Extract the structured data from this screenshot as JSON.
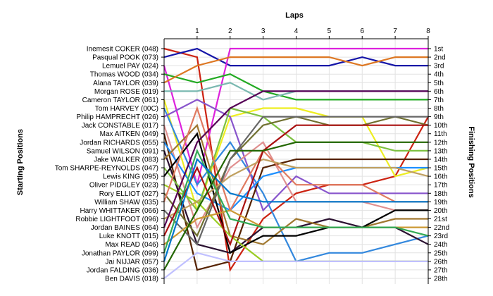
{
  "chart_data": {
    "type": "line",
    "title": "Laps",
    "ylabel_left": "Starting Positions",
    "ylabel_right": "Finishing Positions",
    "x": [
      0,
      1,
      2,
      3,
      4,
      5,
      6,
      7,
      8
    ],
    "x_tick_labels": [
      "1",
      "2",
      "3",
      "4",
      "5",
      "6",
      "7",
      "8"
    ],
    "xlim": [
      0,
      8
    ],
    "ylim": [
      1,
      28
    ],
    "y_inverted": true,
    "grid": true,
    "starting_labels": [
      "Inemesit COKER (048)",
      "Pasqual POOK (073)",
      "Lemuel PAY (024)",
      "Thomas WOOD (034)",
      "Alana TAYLOR (039)",
      "Morgan ROSE (019)",
      "Cameron TAYLOR (061)",
      "Tom HARVEY (00C)",
      "Philip HAMPRECHT (026)",
      "Jack CONSTABLE (017)",
      "Max AITKEN (049)",
      "Jordan RICHARDS (055)",
      "Samuel WILSON (091)",
      "Jake WALKER (083)",
      "Tom SHARPE-REYNOLDS (047)",
      "Lewis KING (095)",
      "Oliver PIDGLEY (023)",
      "Rory ELLIOT (027)",
      "William SHAW (035)",
      "Harry WHITTAKER (066)",
      "Robbie LIGHTFOOT (096)",
      "Jordan BAINES (064)",
      "Luke KNOTT (015)",
      "Max READ (046)",
      "Jonathan PAYLOR (099)",
      "Jai NIJJAR (057)",
      "Jordan FALDING (036)",
      "Ben DAVIS (018)"
    ],
    "finishing_labels": [
      "1st",
      "2nd",
      "3rd",
      "4th",
      "5th",
      "6th",
      "7th",
      "8th",
      "9th",
      "10th",
      "11th",
      "12th",
      "13th",
      "14th",
      "15th",
      "16th",
      "17th",
      "18th",
      "19th",
      "20th",
      "21st",
      "22nd",
      "23rd",
      "24th",
      "25th",
      "26th",
      "27th",
      "28th"
    ],
    "series": [
      {
        "color": "#cc2211",
        "values": [
          1,
          2,
          27,
          21,
          18,
          17,
          17,
          16,
          9
        ]
      },
      {
        "color": "#1515a8",
        "values": [
          2,
          1,
          3,
          3,
          3,
          3,
          2,
          3,
          3
        ]
      },
      {
        "color": "#dd22dd",
        "values": [
          3,
          17,
          1,
          1,
          1,
          1,
          1,
          1,
          1
        ]
      },
      {
        "color": "#22aa22",
        "values": [
          4,
          5,
          4,
          6,
          7,
          7,
          7,
          7,
          7
        ]
      },
      {
        "color": "#dd7722",
        "values": [
          5,
          3,
          2,
          2,
          2,
          2,
          3,
          2,
          2
        ]
      },
      {
        "color": "#7ab8b0",
        "values": [
          6,
          6,
          5,
          7,
          6,
          6,
          6,
          6,
          6
        ]
      },
      {
        "color": "#eeee22",
        "values": [
          7,
          20,
          9,
          8,
          8,
          9,
          9,
          16,
          15
        ]
      },
      {
        "color": "#3388dd",
        "values": [
          8,
          17,
          12,
          18,
          26,
          25,
          25,
          24,
          23
        ]
      },
      {
        "color": "#8855cc",
        "values": [
          9,
          7,
          9,
          20,
          16,
          18,
          18,
          18,
          18
        ]
      },
      {
        "color": "#e09090",
        "values": [
          10,
          22,
          15,
          12,
          19,
          19,
          19,
          20,
          20
        ]
      },
      {
        "color": "#552200",
        "values": [
          11,
          27,
          26,
          15,
          14,
          14,
          14,
          14,
          14
        ]
      },
      {
        "color": "#1e90ff",
        "values": [
          12,
          18,
          20,
          16,
          15,
          15,
          15,
          15,
          15
        ]
      },
      {
        "color": "#2a1030",
        "values": [
          13,
          24,
          25,
          22,
          22,
          21,
          22,
          22,
          24
        ]
      },
      {
        "color": "#a07830",
        "values": [
          14,
          10,
          23,
          24,
          21,
          22,
          22,
          21,
          21
        ]
      },
      {
        "color": "#7cc040",
        "values": [
          15,
          20,
          8,
          9,
          12,
          12,
          12,
          13,
          13
        ]
      },
      {
        "color": "#000000",
        "values": [
          16,
          11,
          25,
          23,
          23,
          22,
          22,
          20,
          20
        ]
      },
      {
        "color": "#99cc22",
        "values": [
          17,
          19,
          23,
          26,
          26,
          26,
          26,
          26,
          26
        ]
      },
      {
        "color": "#707030",
        "values": [
          18,
          23,
          14,
          10,
          9,
          10,
          10,
          9,
          10
        ]
      },
      {
        "color": "#e07a60",
        "values": [
          19,
          8,
          20,
          13,
          17,
          17,
          17,
          19,
          19
        ]
      },
      {
        "color": "#666666",
        "values": [
          20,
          24,
          14,
          9,
          9,
          9,
          9,
          9,
          9
        ]
      },
      {
        "color": "#c0a060",
        "values": [
          21,
          19,
          16,
          14,
          15,
          15,
          15,
          15,
          16
        ]
      },
      {
        "color": "#550055",
        "values": [
          22,
          12,
          8,
          6,
          6,
          6,
          6,
          6,
          6
        ]
      },
      {
        "color": "#aa1111",
        "values": [
          23,
          15,
          24,
          13,
          10,
          10,
          10,
          10,
          10
        ]
      },
      {
        "color": "#cc9933",
        "values": [
          24,
          21,
          20,
          22,
          22,
          22,
          22,
          22,
          22
        ]
      },
      {
        "color": "#33aa55",
        "values": [
          25,
          13,
          21,
          22,
          22,
          22,
          22,
          22,
          23
        ]
      },
      {
        "color": "#0077cc",
        "values": [
          26,
          14,
          18,
          19,
          19,
          19,
          19,
          19,
          19
        ]
      },
      {
        "color": "#226600",
        "values": [
          27,
          20,
          13,
          13,
          12,
          12,
          12,
          12,
          12
        ]
      },
      {
        "color": "#c0c0ff",
        "values": [
          28,
          25,
          26,
          26,
          26,
          26,
          26,
          26,
          26
        ]
      }
    ]
  }
}
